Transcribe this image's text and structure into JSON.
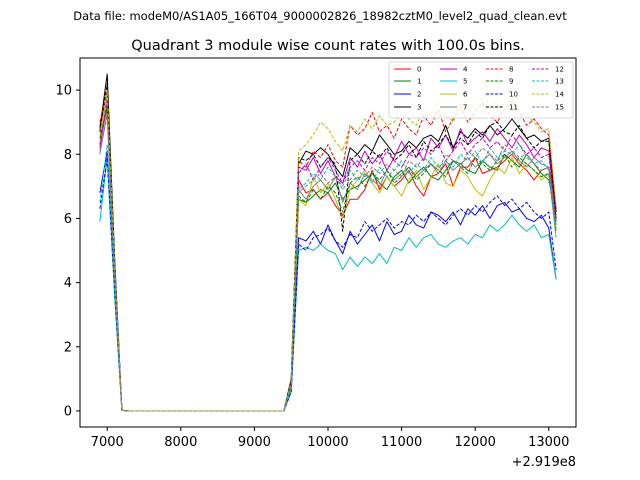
{
  "chart_data": {
    "type": "line",
    "suptitle": "Data file: modeM0/AS1A05_166T04_9000002826_18982cztM0_level2_quad_clean.evt",
    "title": "Quadrant 3 module wise count rates with 100.0s bins.",
    "xlabel": "",
    "ylabel": "",
    "x_offset_label": "+2.919e8",
    "xlim": [
      6630,
      13370
    ],
    "ylim": [
      -0.5,
      11.0
    ],
    "x_ticks": [
      7000,
      8000,
      9000,
      10000,
      11000,
      12000,
      13000
    ],
    "x_tick_labels": [
      "7000",
      "8000",
      "9000",
      "10000",
      "11000",
      "12000",
      "13000"
    ],
    "y_ticks": [
      0,
      2,
      4,
      6,
      8,
      10
    ],
    "y_tick_labels": [
      "0",
      "2",
      "4",
      "6",
      "8",
      "10"
    ],
    "legend_position": "top-right",
    "x": [
      6900,
      7000,
      7100,
      7200,
      7300,
      7400,
      7500,
      7600,
      7700,
      7800,
      7900,
      8000,
      8100,
      8200,
      8300,
      8400,
      8500,
      8600,
      8700,
      8800,
      8900,
      9000,
      9100,
      9200,
      9300,
      9400,
      9500,
      9600,
      9700,
      9800,
      9900,
      10000,
      10100,
      10200,
      10300,
      10400,
      10500,
      10600,
      10700,
      10800,
      10900,
      11000,
      11100,
      11200,
      11300,
      11400,
      11500,
      11600,
      11700,
      11800,
      11900,
      12000,
      12100,
      12200,
      12300,
      12400,
      12500,
      12600,
      12700,
      12800,
      12900,
      13000,
      13100
    ],
    "series": [
      {
        "name": "0",
        "color": "#ff0000",
        "dash": "solid",
        "values": [
          8.9,
          9.8,
          4.5,
          0.02,
          0.0,
          0.0,
          0.0,
          0.0,
          0.0,
          0.0,
          0.0,
          0.0,
          0.0,
          0.0,
          0.0,
          0.0,
          0.0,
          0.0,
          0.0,
          0.0,
          0.0,
          0.0,
          0.0,
          0.0,
          0.0,
          0.0,
          0.8,
          7.2,
          6.8,
          6.9,
          6.6,
          6.8,
          6.4,
          6.1,
          6.6,
          6.6,
          6.9,
          7.5,
          6.9,
          7.3,
          7.0,
          7.2,
          7.5,
          7.0,
          6.7,
          7.3,
          7.4,
          7.7,
          7.0,
          7.6,
          7.6,
          7.9,
          7.4,
          7.5,
          7.6,
          7.8,
          8.0,
          7.7,
          7.5,
          7.2,
          7.5,
          7.6,
          6.3
        ]
      },
      {
        "name": "1",
        "color": "#008000",
        "dash": "solid",
        "values": [
          8.6,
          9.4,
          4.3,
          0.02,
          0.0,
          0.0,
          0.0,
          0.0,
          0.0,
          0.0,
          0.0,
          0.0,
          0.0,
          0.0,
          0.0,
          0.0,
          0.0,
          0.0,
          0.0,
          0.0,
          0.0,
          0.0,
          0.0,
          0.0,
          0.0,
          0.0,
          0.8,
          6.6,
          6.5,
          6.7,
          6.9,
          6.8,
          7.1,
          6.6,
          6.9,
          7.0,
          7.2,
          7.4,
          7.1,
          6.9,
          7.3,
          7.5,
          7.1,
          7.4,
          7.6,
          7.3,
          7.2,
          7.5,
          7.8,
          7.7,
          7.5,
          7.4,
          7.8,
          7.6,
          7.5,
          8.0,
          7.8,
          7.6,
          8.0,
          7.7,
          7.4,
          7.2,
          6.0
        ]
      },
      {
        "name": "2",
        "color": "#0000ff",
        "dash": "solid",
        "values": [
          6.8,
          8.1,
          3.9,
          0.02,
          0.0,
          0.0,
          0.0,
          0.0,
          0.0,
          0.0,
          0.0,
          0.0,
          0.0,
          0.0,
          0.0,
          0.0,
          0.0,
          0.0,
          0.0,
          0.0,
          0.0,
          0.0,
          0.0,
          0.0,
          0.0,
          0.0,
          0.6,
          5.4,
          5.3,
          5.6,
          5.2,
          5.8,
          5.3,
          4.9,
          5.6,
          5.2,
          5.5,
          5.8,
          5.3,
          5.9,
          5.5,
          5.6,
          6.1,
          5.8,
          5.7,
          6.2,
          6.1,
          5.9,
          6.2,
          5.8,
          6.3,
          6.1,
          6.4,
          6.0,
          6.4,
          6.5,
          6.2,
          6.3,
          6.0,
          5.9,
          6.1,
          5.7,
          4.1
        ]
      },
      {
        "name": "3",
        "color": "#000000",
        "dash": "solid",
        "values": [
          8.8,
          10.5,
          4.8,
          0.02,
          0.0,
          0.0,
          0.0,
          0.0,
          0.0,
          0.0,
          0.0,
          0.0,
          0.0,
          0.0,
          0.0,
          0.0,
          0.0,
          0.0,
          0.0,
          0.0,
          0.0,
          0.0,
          0.0,
          0.0,
          0.0,
          0.0,
          1.0,
          7.7,
          8.1,
          8.0,
          8.2,
          8.0,
          7.6,
          7.3,
          8.2,
          8.0,
          8.3,
          8.1,
          8.6,
          8.3,
          8.0,
          8.1,
          8.4,
          8.2,
          8.5,
          8.6,
          8.4,
          8.9,
          8.2,
          8.7,
          8.5,
          8.8,
          8.6,
          8.9,
          8.6,
          8.8,
          9.1,
          8.8,
          8.5,
          8.6,
          8.4,
          8.5,
          6.2
        ]
      },
      {
        "name": "4",
        "color": "#bf00bf",
        "dash": "solid",
        "values": [
          8.2,
          9.6,
          4.4,
          0.02,
          0.0,
          0.0,
          0.0,
          0.0,
          0.0,
          0.0,
          0.0,
          0.0,
          0.0,
          0.0,
          0.0,
          0.0,
          0.0,
          0.0,
          0.0,
          0.0,
          0.0,
          0.0,
          0.0,
          0.0,
          0.0,
          0.0,
          0.9,
          7.6,
          7.5,
          7.9,
          7.4,
          7.8,
          7.3,
          7.1,
          7.9,
          7.6,
          8.1,
          7.7,
          8.0,
          7.5,
          7.9,
          8.4,
          8.0,
          8.2,
          7.8,
          8.5,
          8.2,
          8.6,
          8.1,
          8.8,
          8.3,
          8.5,
          8.7,
          8.4,
          8.8,
          8.5,
          8.2,
          8.6,
          8.3,
          7.9,
          8.2,
          8.1,
          6.0
        ]
      },
      {
        "name": "5",
        "color": "#00bfbf",
        "dash": "solid",
        "values": [
          5.9,
          7.9,
          3.6,
          0.02,
          0.0,
          0.0,
          0.0,
          0.0,
          0.0,
          0.0,
          0.0,
          0.0,
          0.0,
          0.0,
          0.0,
          0.0,
          0.0,
          0.0,
          0.0,
          0.0,
          0.0,
          0.0,
          0.0,
          0.0,
          0.0,
          0.0,
          0.6,
          5.0,
          5.1,
          5.0,
          5.2,
          5.0,
          4.9,
          4.4,
          4.8,
          4.5,
          4.8,
          4.6,
          4.9,
          4.6,
          5.1,
          5.0,
          5.4,
          5.1,
          5.4,
          5.5,
          5.2,
          5.1,
          5.3,
          5.4,
          5.2,
          5.5,
          5.4,
          5.8,
          5.6,
          5.8,
          6.1,
          5.8,
          5.6,
          5.8,
          5.4,
          5.5,
          4.1
        ]
      },
      {
        "name": "6",
        "color": "#bfbf00",
        "dash": "solid",
        "values": [
          8.4,
          9.9,
          4.5,
          0.02,
          0.0,
          0.0,
          0.0,
          0.0,
          0.0,
          0.0,
          0.0,
          0.0,
          0.0,
          0.0,
          0.0,
          0.0,
          0.0,
          0.0,
          0.0,
          0.0,
          0.0,
          0.0,
          0.0,
          0.0,
          0.0,
          0.0,
          0.8,
          6.6,
          6.4,
          7.3,
          6.8,
          7.1,
          6.6,
          6.0,
          6.9,
          7.2,
          7.5,
          7.1,
          6.8,
          7.3,
          7.0,
          6.7,
          7.2,
          7.5,
          6.9,
          7.3,
          7.7,
          7.1,
          7.0,
          7.5,
          7.3,
          6.9,
          6.7,
          7.2,
          7.6,
          7.4,
          7.9,
          7.4,
          7.7,
          7.5,
          7.2,
          7.4,
          5.4
        ]
      },
      {
        "name": "7",
        "color": "#7f7f7f",
        "dash": "solid",
        "values": [
          8.0,
          9.3,
          4.2,
          0.02,
          0.0,
          0.0,
          0.0,
          0.0,
          0.0,
          0.0,
          0.0,
          0.0,
          0.0,
          0.0,
          0.0,
          0.0,
          0.0,
          0.0,
          0.0,
          0.0,
          0.0,
          0.0,
          0.0,
          0.0,
          0.0,
          0.0,
          0.8,
          6.9,
          6.6,
          7.0,
          7.2,
          6.9,
          7.3,
          6.5,
          7.1,
          6.9,
          7.4,
          7.2,
          7.0,
          7.5,
          7.2,
          7.4,
          7.6,
          7.3,
          7.5,
          7.7,
          7.4,
          7.8,
          7.5,
          7.7,
          7.9,
          7.6,
          7.8,
          8.0,
          7.7,
          7.9,
          8.1,
          7.8,
          7.6,
          7.9,
          7.7,
          7.6,
          5.8
        ]
      },
      {
        "name": "8",
        "color": "#ff0000",
        "dash": "dashed",
        "values": [
          9.0,
          10.0,
          4.6,
          0.02,
          0.0,
          0.0,
          0.0,
          0.0,
          0.0,
          0.0,
          0.0,
          0.0,
          0.0,
          0.0,
          0.0,
          0.0,
          0.0,
          0.0,
          0.0,
          0.0,
          0.0,
          0.0,
          0.0,
          0.0,
          0.0,
          0.0,
          0.9,
          7.8,
          7.6,
          8.1,
          7.9,
          8.3,
          7.8,
          7.6,
          8.9,
          8.6,
          8.8,
          9.3,
          8.7,
          8.9,
          8.5,
          9.1,
          8.8,
          8.6,
          9.2,
          8.9,
          9.4,
          8.7,
          9.1,
          9.5,
          9.0,
          9.3,
          9.6,
          9.2,
          9.0,
          9.4,
          9.7,
          9.3,
          8.9,
          9.1,
          8.8,
          8.6,
          6.2
        ]
      },
      {
        "name": "9",
        "color": "#008000",
        "dash": "dashed",
        "values": [
          8.5,
          9.5,
          4.3,
          0.02,
          0.0,
          0.0,
          0.0,
          0.0,
          0.0,
          0.0,
          0.0,
          0.0,
          0.0,
          0.0,
          0.0,
          0.0,
          0.0,
          0.0,
          0.0,
          0.0,
          0.0,
          0.0,
          0.0,
          0.0,
          0.0,
          0.0,
          0.8,
          6.7,
          6.5,
          6.9,
          6.6,
          7.0,
          6.8,
          6.2,
          7.1,
          7.3,
          7.0,
          7.4,
          7.2,
          7.5,
          7.1,
          7.3,
          7.6,
          7.2,
          7.4,
          7.7,
          7.5,
          7.3,
          7.8,
          7.6,
          7.4,
          7.9,
          7.7,
          7.5,
          7.8,
          8.0,
          7.6,
          7.9,
          7.7,
          7.5,
          7.3,
          7.4,
          5.6
        ]
      },
      {
        "name": "10",
        "color": "#0000ff",
        "dash": "dashed",
        "values": [
          6.3,
          7.9,
          3.7,
          0.02,
          0.0,
          0.0,
          0.0,
          0.0,
          0.0,
          0.0,
          0.0,
          0.0,
          0.0,
          0.0,
          0.0,
          0.0,
          0.0,
          0.0,
          0.0,
          0.0,
          0.0,
          0.0,
          0.0,
          0.0,
          0.0,
          0.0,
          0.6,
          5.2,
          5.0,
          5.4,
          5.5,
          5.7,
          5.3,
          5.1,
          5.5,
          5.4,
          5.9,
          5.6,
          5.8,
          6.0,
          5.7,
          5.9,
          5.8,
          6.1,
          5.9,
          6.2,
          6.0,
          5.8,
          6.1,
          6.3,
          6.1,
          6.4,
          6.2,
          6.5,
          6.7,
          6.4,
          6.6,
          6.3,
          6.5,
          6.2,
          6.0,
          6.2,
          4.4
        ]
      },
      {
        "name": "11",
        "color": "#000000",
        "dash": "dashed",
        "values": [
          8.7,
          10.2,
          4.7,
          0.02,
          0.0,
          0.0,
          0.0,
          0.0,
          0.0,
          0.0,
          0.0,
          0.0,
          0.0,
          0.0,
          0.0,
          0.0,
          0.0,
          0.0,
          0.0,
          0.0,
          0.0,
          0.0,
          0.0,
          0.0,
          0.0,
          0.0,
          0.9,
          7.9,
          7.8,
          8.0,
          7.6,
          7.9,
          7.7,
          5.6,
          7.8,
          8.0,
          7.7,
          8.1,
          7.9,
          8.2,
          7.8,
          8.0,
          8.3,
          7.9,
          8.4,
          8.1,
          8.3,
          8.6,
          8.2,
          8.5,
          8.3,
          8.7,
          8.5,
          8.9,
          9.0,
          8.7,
          8.6,
          8.9,
          8.5,
          8.2,
          8.4,
          8.4,
          6.0
        ]
      },
      {
        "name": "12",
        "color": "#bf00bf",
        "dash": "dashed",
        "values": [
          8.3,
          9.7,
          4.4,
          0.02,
          0.0,
          0.0,
          0.0,
          0.0,
          0.0,
          0.0,
          0.0,
          0.0,
          0.0,
          0.0,
          0.0,
          0.0,
          0.0,
          0.0,
          0.0,
          0.0,
          0.0,
          0.0,
          0.0,
          0.0,
          0.0,
          0.0,
          0.8,
          7.4,
          7.7,
          7.2,
          7.6,
          7.9,
          7.5,
          7.1,
          7.6,
          7.8,
          7.5,
          7.9,
          7.7,
          8.1,
          7.8,
          7.6,
          8.0,
          7.9,
          8.2,
          8.0,
          8.3,
          7.8,
          8.1,
          8.4,
          8.0,
          8.3,
          8.5,
          8.2,
          8.4,
          8.1,
          8.6,
          8.3,
          8.0,
          8.2,
          7.9,
          8.0,
          5.9
        ]
      },
      {
        "name": "13",
        "color": "#00bfbf",
        "dash": "dashed",
        "values": [
          6.5,
          8.3,
          3.8,
          0.02,
          0.0,
          0.0,
          0.0,
          0.0,
          0.0,
          0.0,
          0.0,
          0.0,
          0.0,
          0.0,
          0.0,
          0.0,
          0.0,
          0.0,
          0.0,
          0.0,
          0.0,
          0.0,
          0.0,
          0.0,
          0.0,
          0.0,
          0.7,
          6.9,
          7.1,
          7.4,
          7.2,
          7.6,
          7.3,
          7.0,
          7.5,
          7.2,
          7.4,
          7.1,
          7.6,
          7.3,
          7.5,
          7.8,
          7.4,
          7.7,
          7.5,
          7.9,
          7.6,
          7.8,
          7.6,
          8.0,
          7.8,
          8.1,
          7.7,
          8.2,
          7.9,
          8.1,
          8.0,
          8.3,
          7.9,
          7.7,
          7.8,
          7.5,
          5.4
        ]
      },
      {
        "name": "14",
        "color": "#bfbf00",
        "dash": "dashed",
        "values": [
          8.6,
          10.0,
          4.6,
          0.02,
          0.0,
          0.0,
          0.0,
          0.0,
          0.0,
          0.0,
          0.0,
          0.0,
          0.0,
          0.0,
          0.0,
          0.0,
          0.0,
          0.0,
          0.0,
          0.0,
          0.0,
          0.0,
          0.0,
          0.0,
          0.0,
          0.0,
          0.9,
          8.1,
          8.3,
          8.6,
          9.0,
          8.8,
          8.4,
          8.1,
          8.9,
          8.7,
          9.1,
          8.8,
          9.2,
          8.9,
          9.0,
          9.3,
          9.1,
          8.9,
          9.4,
          9.2,
          9.6,
          9.3,
          9.0,
          9.5,
          9.7,
          9.4,
          9.8,
          9.5,
          9.7,
          9.4,
          9.6,
          9.3,
          9.2,
          9.0,
          8.7,
          8.8,
          6.4
        ]
      },
      {
        "name": "15",
        "color": "#7f7f7f",
        "dash": "dashed",
        "values": [
          8.1,
          9.2,
          4.2,
          0.02,
          0.0,
          0.0,
          0.0,
          0.0,
          0.0,
          0.0,
          0.0,
          0.0,
          0.0,
          0.0,
          0.0,
          0.0,
          0.0,
          0.0,
          0.0,
          0.0,
          0.0,
          0.0,
          0.0,
          0.0,
          0.0,
          0.0,
          0.8,
          6.8,
          7.0,
          7.2,
          7.4,
          7.1,
          7.3,
          6.9,
          7.2,
          7.5,
          7.3,
          7.6,
          7.4,
          7.7,
          7.5,
          7.3,
          7.8,
          7.6,
          7.9,
          7.7,
          7.5,
          8.0,
          7.8,
          7.6,
          8.1,
          7.9,
          8.2,
          8.0,
          7.8,
          8.3,
          8.1,
          7.9,
          8.0,
          7.7,
          7.5,
          7.6,
          5.7
        ]
      }
    ]
  }
}
